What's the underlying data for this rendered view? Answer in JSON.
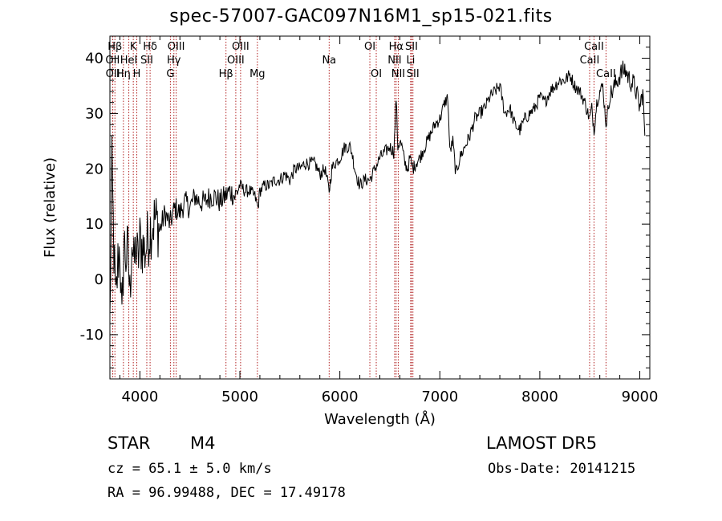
{
  "chart_data": {
    "type": "line",
    "title": "spec-57007-GAC097N16M1_sp15-021.fits",
    "xlabel": "Wavelength (Å)",
    "ylabel": "Flux (relative)",
    "xlim": [
      3700,
      9100
    ],
    "ylim": [
      -18,
      44
    ],
    "xticks": [
      4000,
      5000,
      6000,
      7000,
      8000,
      9000
    ],
    "yticks": [
      -10,
      0,
      10,
      20,
      30,
      40
    ],
    "grid": false,
    "line_color": "#000000",
    "marker_color": "#b22222",
    "series": [
      {
        "x": [
          3700,
          3720,
          3740,
          3760,
          3780,
          3800,
          3820,
          3840,
          3860,
          3880,
          3900,
          3920,
          3940,
          3960,
          3980,
          4000,
          4050,
          4100,
          4150,
          4200,
          4250,
          4300,
          4350,
          4400,
          4450,
          4500,
          4550,
          4600,
          4650,
          4700,
          4750,
          4800,
          4850,
          4900,
          4950,
          5000,
          5050,
          5100,
          5150,
          5180,
          5200,
          5250,
          5300,
          5350,
          5400,
          5450,
          5500,
          5550,
          5600,
          5650,
          5700,
          5750,
          5800,
          5850,
          5893,
          5920,
          5950,
          6000,
          6050,
          6100,
          6120,
          6150,
          6180,
          6200,
          6250,
          6300,
          6350,
          6400,
          6450,
          6500,
          6540,
          6563,
          6580,
          6600,
          6620,
          6650,
          6680,
          6700,
          6730,
          6760,
          6800,
          6850,
          6900,
          6950,
          7000,
          7050,
          7080,
          7100,
          7130,
          7160,
          7200,
          7250,
          7300,
          7350,
          7400,
          7450,
          7500,
          7550,
          7600,
          7620,
          7650,
          7700,
          7750,
          7800,
          7850,
          7900,
          7950,
          8000,
          8050,
          8100,
          8150,
          8200,
          8250,
          8300,
          8350,
          8400,
          8450,
          8498,
          8520,
          8542,
          8570,
          8600,
          8630,
          8662,
          8700,
          8750,
          8800,
          8850,
          8900,
          8950,
          9000,
          9030,
          9050
        ],
        "y": [
          -8,
          20,
          5,
          -5,
          3,
          6,
          -9,
          7,
          4,
          5,
          -3,
          8,
          2,
          6,
          3,
          7,
          5,
          9,
          11,
          9,
          12,
          10,
          13,
          12,
          14,
          13,
          15,
          14,
          14,
          15,
          15,
          14,
          15,
          16,
          15,
          17,
          16,
          16,
          15,
          13,
          16,
          17,
          17,
          18,
          18,
          19,
          18,
          20,
          20,
          21,
          21,
          21,
          19,
          20,
          16,
          20,
          21,
          22,
          24,
          24,
          23,
          20,
          18,
          17,
          18,
          18,
          20,
          22,
          23,
          24,
          23,
          33,
          24,
          25,
          24,
          21,
          20,
          22,
          20,
          21,
          22,
          24,
          26,
          28,
          29,
          32,
          33,
          23,
          25,
          19,
          22,
          24,
          26,
          29,
          30,
          31,
          33,
          34,
          35,
          33,
          30,
          31,
          28,
          27,
          29,
          30,
          31,
          33,
          32,
          34,
          35,
          36,
          36,
          37,
          35,
          34,
          32,
          29,
          31,
          27,
          32,
          34,
          35,
          28,
          33,
          35,
          37,
          38,
          36,
          35,
          31,
          34,
          26
        ]
      }
    ],
    "lines": [
      {
        "label": "Hβ",
        "x": 3750,
        "row": 1
      },
      {
        "label": "OII",
        "x": 3727,
        "row": 2
      },
      {
        "label": "OII",
        "x": 3729,
        "row": 3
      },
      {
        "label": "Hη",
        "x": 3835,
        "row": 3
      },
      {
        "label": "HeI",
        "x": 3889,
        "row": 2
      },
      {
        "label": "K",
        "x": 3934,
        "row": 1
      },
      {
        "label": "H",
        "x": 3969,
        "row": 3
      },
      {
        "label": "Hδ",
        "x": 4102,
        "row": 1
      },
      {
        "label": "SII",
        "x": 4069,
        "row": 2
      },
      {
        "label": "OIII",
        "x": 4363,
        "row": 1
      },
      {
        "label": "Hγ",
        "x": 4340,
        "row": 2
      },
      {
        "label": "G",
        "x": 4305,
        "row": 3
      },
      {
        "label": "Hβ",
        "x": 4861,
        "row": 3
      },
      {
        "label": "OIII",
        "x": 5007,
        "row": 1
      },
      {
        "label": "OIII",
        "x": 4959,
        "row": 2
      },
      {
        "label": "Mg",
        "x": 5175,
        "row": 3
      },
      {
        "label": "Na",
        "x": 5893,
        "row": 2
      },
      {
        "label": "OI",
        "x": 6300,
        "row": 1
      },
      {
        "label": "OI",
        "x": 6364,
        "row": 3
      },
      {
        "label": "Hα",
        "x": 6563,
        "row": 1
      },
      {
        "label": "NII",
        "x": 6548,
        "row": 2
      },
      {
        "label": "NII",
        "x": 6584,
        "row": 3
      },
      {
        "label": "SII",
        "x": 6717,
        "row": 1
      },
      {
        "label": "Li",
        "x": 6708,
        "row": 2
      },
      {
        "label": "SII",
        "x": 6731,
        "row": 3
      },
      {
        "label": "CaII",
        "x": 8542,
        "row": 1
      },
      {
        "label": "CaII",
        "x": 8498,
        "row": 2
      },
      {
        "label": "CaII",
        "x": 8662,
        "row": 3
      }
    ]
  },
  "info": {
    "object": "STAR",
    "subclass": "M4",
    "survey": "LAMOST DR5",
    "cz": "cz = 65.1 ± 5.0 km/s",
    "obs_date": "Obs-Date: 20141215",
    "coords": "RA =  96.99488, DEC =  17.49178"
  }
}
